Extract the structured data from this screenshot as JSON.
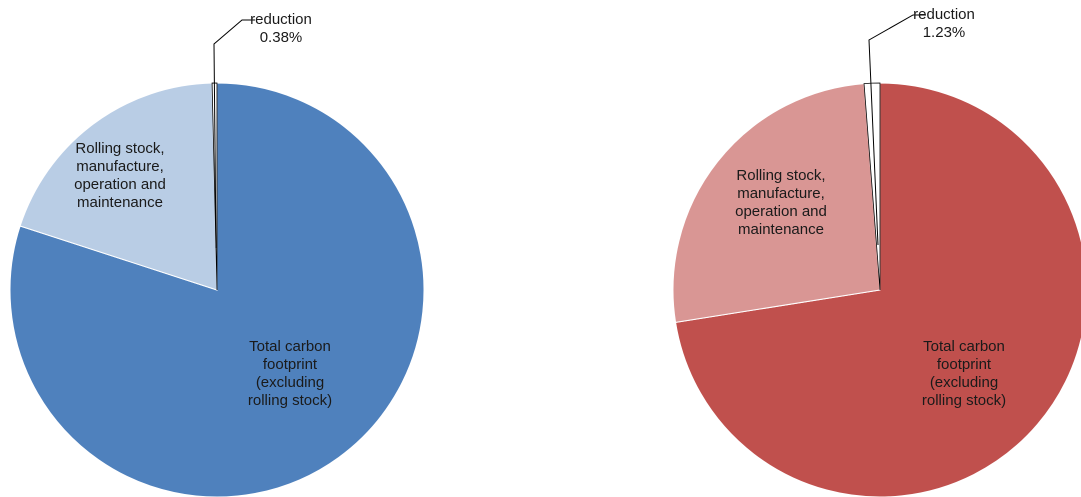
{
  "chart_data": [
    {
      "type": "pie",
      "colors": [
        "#4f81bd",
        "#b9cde5",
        "#ffffff"
      ],
      "slices": [
        {
          "label": "Total carbon footprint (excluding rolling stock)",
          "label_lines": [
            "Total carbon",
            "footprint",
            "(excluding",
            "rolling stock)"
          ],
          "value": 80.0
        },
        {
          "label": "Rolling stock, manufacture, operation and maintenance",
          "label_lines": [
            "Rolling stock,",
            "manufacture,",
            "operation and",
            "maintenance"
          ],
          "value": 19.62
        },
        {
          "label": "reduction",
          "label_lines": [
            "reduction",
            "0.38%"
          ],
          "value": 0.38
        }
      ]
    },
    {
      "type": "pie",
      "colors": [
        "#c0504d",
        "#d99694",
        "#ffffff"
      ],
      "slices": [
        {
          "label": "Total carbon footprint (excluding rolling stock)",
          "label_lines": [
            "Total carbon",
            "footprint",
            "(excluding",
            "rolling stock)"
          ],
          "value": 72.5
        },
        {
          "label": "Rolling stock, manufacture, operation and maintenance",
          "label_lines": [
            "Rolling stock,",
            "manufacture,",
            "operation and",
            "maintenance"
          ],
          "value": 26.27
        },
        {
          "label": "reduction",
          "label_lines": [
            "reduction",
            "1.23%"
          ],
          "value": 1.23
        }
      ]
    }
  ]
}
